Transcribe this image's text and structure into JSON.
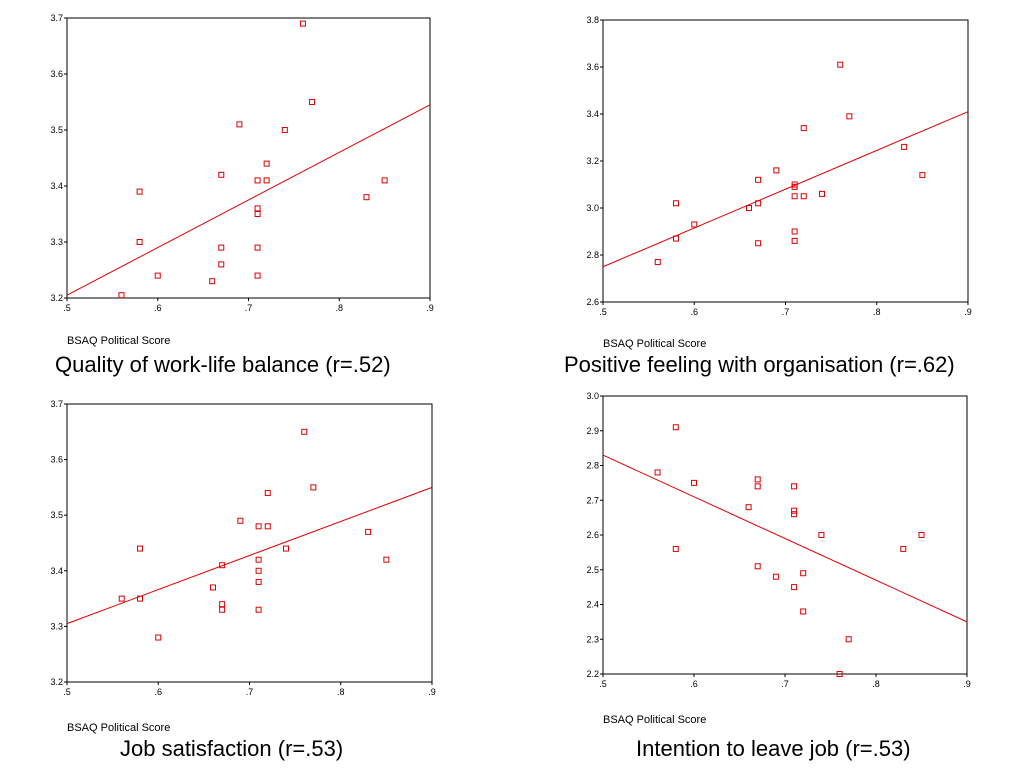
{
  "chart_data": [
    {
      "type": "scatter",
      "title": "Quality of work-life balance (r=.52)",
      "xlabel": "BSAQ Political Score",
      "ylabel": "",
      "xlim": [
        0.5,
        0.9
      ],
      "ylim": [
        3.2,
        3.7
      ],
      "xticks": [
        ".5",
        ".6",
        ".7",
        ".8",
        ".9"
      ],
      "yticks": [
        "3.2",
        "3.3",
        "3.4",
        "3.5",
        "3.6",
        "3.7"
      ],
      "marker_color": "#dd0000",
      "line_color": "#dd0000",
      "points": [
        [
          0.56,
          3.205
        ],
        [
          0.58,
          3.39
        ],
        [
          0.58,
          3.3
        ],
        [
          0.6,
          3.24
        ],
        [
          0.66,
          3.23
        ],
        [
          0.67,
          3.42
        ],
        [
          0.67,
          3.29
        ],
        [
          0.67,
          3.26
        ],
        [
          0.69,
          3.51
        ],
        [
          0.71,
          3.41
        ],
        [
          0.71,
          3.36
        ],
        [
          0.71,
          3.35
        ],
        [
          0.71,
          3.29
        ],
        [
          0.71,
          3.24
        ],
        [
          0.72,
          3.44
        ],
        [
          0.72,
          3.41
        ],
        [
          0.74,
          3.5
        ],
        [
          0.76,
          3.69
        ],
        [
          0.77,
          3.55
        ],
        [
          0.83,
          3.38
        ],
        [
          0.85,
          3.41
        ]
      ],
      "fit_line": [
        [
          0.5,
          3.205
        ],
        [
          0.9,
          3.545
        ]
      ]
    },
    {
      "type": "scatter",
      "title": "Positive feeling with organisation (r=.62)",
      "xlabel": "BSAQ Political Score",
      "ylabel": "",
      "xlim": [
        0.5,
        0.9
      ],
      "ylim": [
        2.6,
        3.8
      ],
      "xticks": [
        ".5",
        ".6",
        ".7",
        ".8",
        ".9"
      ],
      "yticks": [
        "2.6",
        "2.8",
        "3.0",
        "3.2",
        "3.4",
        "3.6",
        "3.8"
      ],
      "marker_color": "#dd0000",
      "line_color": "#dd0000",
      "points": [
        [
          0.56,
          2.77
        ],
        [
          0.58,
          3.02
        ],
        [
          0.58,
          2.87
        ],
        [
          0.6,
          2.93
        ],
        [
          0.66,
          3.0
        ],
        [
          0.67,
          3.12
        ],
        [
          0.67,
          3.02
        ],
        [
          0.67,
          2.85
        ],
        [
          0.69,
          3.16
        ],
        [
          0.71,
          3.1
        ],
        [
          0.71,
          3.09
        ],
        [
          0.71,
          3.05
        ],
        [
          0.71,
          2.9
        ],
        [
          0.71,
          2.86
        ],
        [
          0.72,
          3.34
        ],
        [
          0.72,
          3.05
        ],
        [
          0.74,
          3.06
        ],
        [
          0.76,
          3.61
        ],
        [
          0.77,
          3.39
        ],
        [
          0.83,
          3.26
        ],
        [
          0.85,
          3.14
        ]
      ],
      "fit_line": [
        [
          0.5,
          2.75
        ],
        [
          0.9,
          3.41
        ]
      ]
    },
    {
      "type": "scatter",
      "title": "Job satisfaction (r=.53)",
      "xlabel": "BSAQ Political Score",
      "ylabel": "",
      "xlim": [
        0.5,
        0.9
      ],
      "ylim": [
        3.2,
        3.7
      ],
      "xticks": [
        ".5",
        ".6",
        ".7",
        ".8",
        ".9"
      ],
      "yticks": [
        "3.2",
        "3.3",
        "3.4",
        "3.5",
        "3.6",
        "3.7"
      ],
      "marker_color": "#dd0000",
      "line_color": "#dd0000",
      "points": [
        [
          0.56,
          3.35
        ],
        [
          0.58,
          3.44
        ],
        [
          0.58,
          3.35
        ],
        [
          0.6,
          3.28
        ],
        [
          0.66,
          3.37
        ],
        [
          0.67,
          3.41
        ],
        [
          0.67,
          3.34
        ],
        [
          0.67,
          3.33
        ],
        [
          0.69,
          3.49
        ],
        [
          0.71,
          3.48
        ],
        [
          0.71,
          3.42
        ],
        [
          0.71,
          3.4
        ],
        [
          0.71,
          3.38
        ],
        [
          0.71,
          3.33
        ],
        [
          0.72,
          3.54
        ],
        [
          0.72,
          3.48
        ],
        [
          0.74,
          3.44
        ],
        [
          0.76,
          3.65
        ],
        [
          0.77,
          3.55
        ],
        [
          0.83,
          3.47
        ],
        [
          0.85,
          3.42
        ]
      ],
      "fit_line": [
        [
          0.5,
          3.305
        ],
        [
          0.9,
          3.55
        ]
      ]
    },
    {
      "type": "scatter",
      "title": "Intention to leave job (r=.53)",
      "xlabel": "BSAQ Political Score",
      "ylabel": "",
      "xlim": [
        0.5,
        0.9
      ],
      "ylim": [
        2.2,
        3.0
      ],
      "xticks": [
        ".5",
        ".6",
        ".7",
        ".8",
        ".9"
      ],
      "yticks": [
        "2.2",
        "2.3",
        "2.4",
        "2.5",
        "2.6",
        "2.7",
        "2.8",
        "2.9",
        "3.0"
      ],
      "marker_color": "#dd0000",
      "line_color": "#dd0000",
      "points": [
        [
          0.56,
          2.78
        ],
        [
          0.58,
          2.91
        ],
        [
          0.58,
          2.56
        ],
        [
          0.6,
          2.75
        ],
        [
          0.66,
          2.68
        ],
        [
          0.67,
          2.76
        ],
        [
          0.67,
          2.74
        ],
        [
          0.67,
          2.51
        ],
        [
          0.69,
          2.48
        ],
        [
          0.71,
          2.74
        ],
        [
          0.71,
          2.67
        ],
        [
          0.71,
          2.66
        ],
        [
          0.71,
          2.45
        ],
        [
          0.72,
          2.49
        ],
        [
          0.72,
          2.38
        ],
        [
          0.74,
          2.6
        ],
        [
          0.76,
          2.2
        ],
        [
          0.77,
          2.3
        ],
        [
          0.83,
          2.56
        ],
        [
          0.85,
          2.6
        ]
      ],
      "fit_line": [
        [
          0.5,
          2.83
        ],
        [
          0.9,
          2.35
        ]
      ]
    }
  ]
}
